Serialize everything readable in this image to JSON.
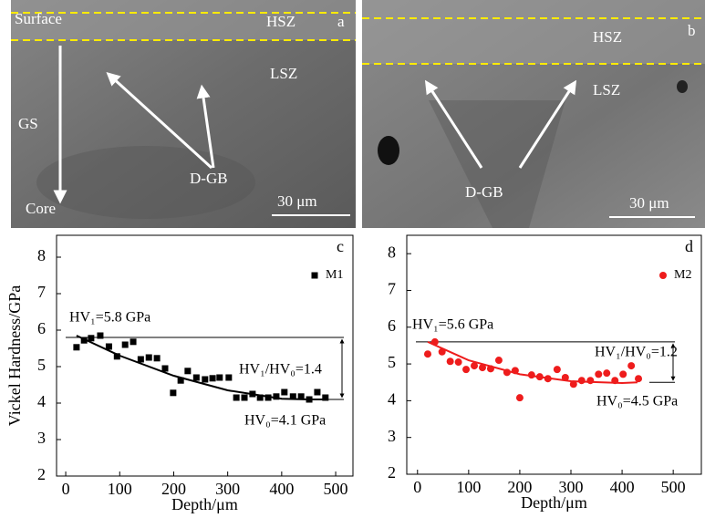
{
  "panels": [
    {
      "labels": [
        "Surface",
        "HSZ",
        "a",
        "LSZ",
        "GS",
        "D-GB",
        "Core",
        "30 μm"
      ]
    },
    {
      "labels": [
        "HSZ",
        "b",
        "LSZ",
        "D-GB",
        "30 μm"
      ]
    }
  ],
  "chart_data": [
    {
      "type": "scatter",
      "label": "c",
      "xlabel": "Depth/μm",
      "ylabel": "Vickel Hardness/GPa",
      "xlim": [
        -17,
        532
      ],
      "ylim": [
        2,
        8.6
      ],
      "xticks": [
        0,
        100,
        200,
        300,
        400,
        500
      ],
      "yticks": [
        2,
        3,
        4,
        5,
        6,
        7,
        8
      ],
      "marker": "square",
      "legend": "upper right",
      "series": [
        {
          "name": "M1",
          "color": "#000000",
          "x": [
            20,
            34,
            47,
            64,
            80,
            95,
            110,
            125,
            139,
            154,
            169,
            184,
            199,
            213,
            226,
            242,
            258,
            272,
            285,
            302,
            316,
            331,
            346,
            360,
            375,
            390,
            405,
            421,
            436,
            451,
            466,
            481
          ],
          "values": [
            5.53,
            5.72,
            5.78,
            5.85,
            5.55,
            5.28,
            5.6,
            5.68,
            5.2,
            5.25,
            5.23,
            4.95,
            4.28,
            4.62,
            4.88,
            4.7,
            4.65,
            4.68,
            4.7,
            4.7,
            4.15,
            4.15,
            4.25,
            4.15,
            4.15,
            4.18,
            4.3,
            4.18,
            4.18,
            4.1,
            4.3,
            4.15
          ]
        }
      ],
      "fit": {
        "x": [
          20,
          100,
          200,
          300,
          400,
          450,
          480
        ],
        "values": [
          5.85,
          5.3,
          4.75,
          4.35,
          4.12,
          4.1,
          4.1
        ]
      },
      "hlines": [
        5.8,
        4.1
      ],
      "annotations": [
        "HV₁=5.8 GPa",
        "HV₁/HV₀=1.4",
        "HV₀=4.1 GPa"
      ]
    },
    {
      "type": "scatter",
      "label": "d",
      "xlabel": "Depth/μm",
      "xlim": [
        -21,
        555
      ],
      "ylim": [
        2,
        8.5
      ],
      "xticks": [
        0,
        100,
        200,
        300,
        400,
        500
      ],
      "yticks": [
        2,
        3,
        4,
        5,
        6,
        7,
        8
      ],
      "marker": "circle",
      "legend": "upper right",
      "series": [
        {
          "name": "M2",
          "color": "#ee1c1c",
          "x": [
            20,
            34,
            48,
            64,
            80,
            95,
            111,
            127,
            143,
            159,
            175,
            191,
            200,
            223,
            239,
            255,
            273,
            289,
            305,
            321,
            338,
            354,
            370,
            386,
            402,
            418,
            432
          ],
          "values": [
            5.27,
            5.6,
            5.33,
            5.07,
            5.05,
            4.85,
            4.95,
            4.9,
            4.87,
            5.1,
            4.77,
            4.82,
            4.08,
            4.7,
            4.65,
            4.6,
            4.85,
            4.63,
            4.45,
            4.55,
            4.55,
            4.72,
            4.75,
            4.55,
            4.72,
            4.95,
            4.6
          ]
        }
      ],
      "fit": {
        "x": [
          20,
          100,
          200,
          300,
          400,
          430
        ],
        "values": [
          5.6,
          5.1,
          4.72,
          4.53,
          4.48,
          4.5
        ]
      },
      "hlines": [
        5.6,
        4.5
      ],
      "annotations": [
        "HV₁=5.6 GPa",
        "HV₁/HV₀=1.2",
        "HV₀=4.5 GPa"
      ]
    }
  ]
}
